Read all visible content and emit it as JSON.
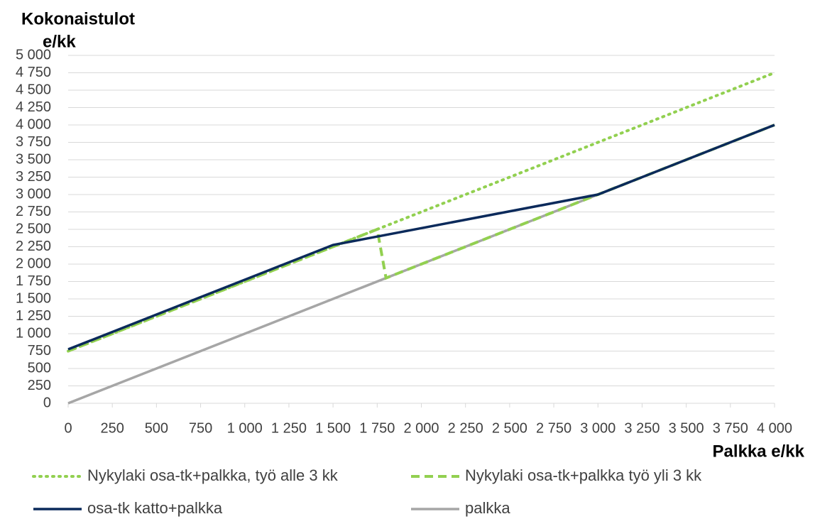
{
  "chart_data": {
    "type": "line",
    "ylabel": [
      "Kokonaistulot",
      "e/kk"
    ],
    "xlabel": "Palkka e/kk",
    "xlim": [
      0,
      4000
    ],
    "xticks": [
      0,
      250,
      500,
      750,
      {
        "value": 1000,
        "label": "1 000"
      },
      {
        "value": 1250,
        "label": "1 250"
      },
      {
        "value": 1500,
        "label": "1 500"
      },
      {
        "value": 1750,
        "label": "1 750"
      },
      {
        "value": 2000,
        "label": "2 000"
      },
      {
        "value": 2250,
        "label": "2 250"
      },
      {
        "value": 2500,
        "label": "2 500"
      },
      {
        "value": 2750,
        "label": "2 750"
      },
      {
        "value": 3000,
        "label": "3 000"
      },
      {
        "value": 3250,
        "label": "3 250"
      },
      {
        "value": 3500,
        "label": "3 500"
      },
      {
        "value": 3750,
        "label": "3 750"
      },
      {
        "value": 4000,
        "label": "4 000"
      }
    ],
    "ylim": [
      0,
      5000
    ],
    "yticks": [
      0,
      250,
      500,
      750,
      {
        "value": 1000,
        "label": "1 000"
      },
      {
        "value": 1250,
        "label": "1 250"
      },
      {
        "value": 1500,
        "label": "1 500"
      },
      {
        "value": 1750,
        "label": "1 750"
      },
      {
        "value": 2000,
        "label": "2 000"
      },
      {
        "value": 2250,
        "label": "2 250"
      },
      {
        "value": 2500,
        "label": "2 500"
      },
      {
        "value": 2750,
        "label": "2 750"
      },
      {
        "value": 3000,
        "label": "3 000"
      },
      {
        "value": 3250,
        "label": "3 250"
      },
      {
        "value": 3500,
        "label": "3 500"
      },
      {
        "value": 3750,
        "label": "3 750"
      },
      {
        "value": 4000,
        "label": "4 000"
      },
      {
        "value": 4250,
        "label": "4 250"
      },
      {
        "value": 4500,
        "label": "4 500"
      },
      {
        "value": 4750,
        "label": "4 750"
      },
      {
        "value": 5000,
        "label": "5 000"
      }
    ],
    "grid": true,
    "series": [
      {
        "name": "palkka",
        "color": "#a6a6a6",
        "style": "solid",
        "x": [
          0,
          4000
        ],
        "values": [
          0,
          4000
        ]
      },
      {
        "name": "Nykylaki osa-tk+palkka, työ alle 3 kk",
        "color": "#92d050",
        "style": "dotted",
        "x": [
          0,
          4000
        ],
        "values": [
          750,
          4750
        ]
      },
      {
        "name": "Nykylaki osa-tk+palkka työ yli 3 kk",
        "color": "#92d050",
        "style": "dashed",
        "x": [
          0,
          1500,
          1750,
          1800,
          4000
        ],
        "values": [
          750,
          2250,
          2500,
          1800,
          4000
        ]
      },
      {
        "name": "osa-tk katto+palkka",
        "color": "#0b2a5b",
        "style": "solid",
        "x": [
          0,
          1500,
          3000,
          4000
        ],
        "values": [
          775,
          2275,
          3000,
          4000
        ]
      }
    ],
    "legend_order": [
      1,
      2,
      3,
      0
    ]
  }
}
